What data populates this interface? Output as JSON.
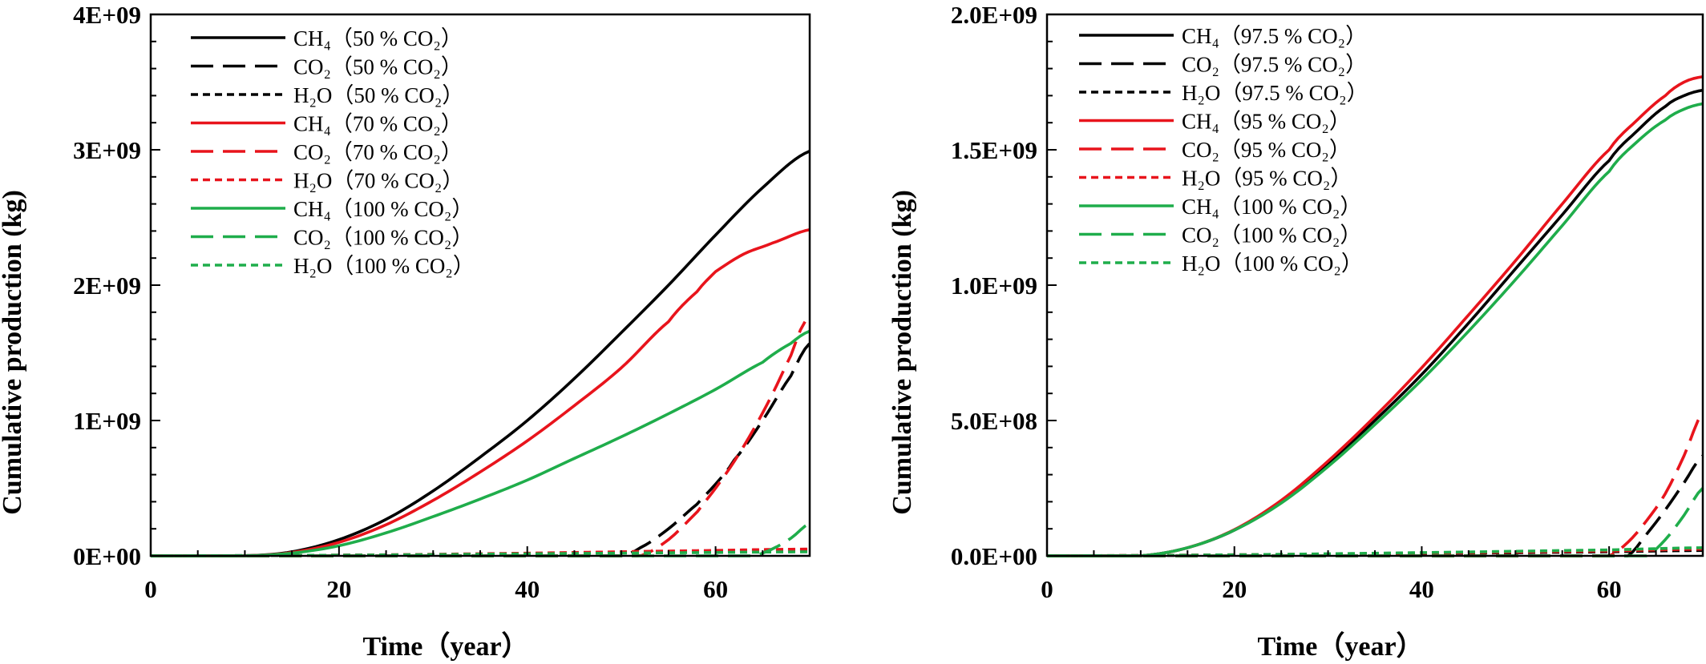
{
  "colors": {
    "black": "#000000",
    "red": "#e8141c",
    "green": "#1fad4b"
  },
  "chart_data": [
    {
      "type": "line",
      "xlabel": "Time（year）",
      "ylabel": "Cumulative production (kg)",
      "xlim": [
        0,
        70
      ],
      "ylim": [
        0,
        4000000000
      ],
      "x_ticks": [
        0,
        20,
        40,
        60
      ],
      "x_tick_labels": [
        "0",
        "20",
        "40",
        "60"
      ],
      "y_ticks": [
        0,
        1000000000,
        2000000000,
        3000000000,
        4000000000
      ],
      "y_tick_labels": [
        "0E+00",
        "1E+09",
        "2E+09",
        "3E+09",
        "4E+09"
      ],
      "grid": false,
      "legend_position": "top-left",
      "series": [
        {
          "name": "CH₄（50 % CO₂）",
          "color": "black",
          "dash": "solid",
          "x": [
            0,
            10,
            15,
            20,
            25,
            30,
            35,
            40,
            45,
            50,
            55,
            60,
            65,
            70
          ],
          "y": [
            0,
            0,
            30000000,
            120000000,
            270000000,
            480000000,
            730000000,
            1000000000,
            1310000000,
            1650000000,
            2000000000,
            2370000000,
            2720000000,
            2990000000
          ]
        },
        {
          "name": "CO₂（50 % CO₂）",
          "color": "black",
          "dash": "long",
          "x": [
            0,
            50,
            52,
            55,
            58,
            60,
            62,
            65,
            68,
            70
          ],
          "y": [
            0,
            0,
            60000000,
            200000000,
            380000000,
            530000000,
            710000000,
            1000000000,
            1330000000,
            1570000000
          ]
        },
        {
          "name": "H₂O（50 % CO₂）",
          "color": "black",
          "dash": "short",
          "x": [
            0,
            20,
            40,
            60,
            70
          ],
          "y": [
            0,
            5000000,
            15000000,
            30000000,
            40000000
          ]
        },
        {
          "name": "CH₄（70 % CO₂）",
          "color": "red",
          "dash": "solid",
          "x": [
            0,
            10,
            15,
            20,
            25,
            30,
            35,
            40,
            45,
            50,
            55,
            58,
            60,
            63,
            66,
            70
          ],
          "y": [
            0,
            0,
            25000000,
            100000000,
            230000000,
            410000000,
            620000000,
            850000000,
            1110000000,
            1390000000,
            1730000000,
            1950000000,
            2100000000,
            2230000000,
            2310000000,
            2410000000
          ]
        },
        {
          "name": "CO₂（70 % CO₂）",
          "color": "red",
          "dash": "long",
          "x": [
            0,
            52,
            55,
            58,
            60,
            62,
            64,
            66,
            68,
            69.5
          ],
          "y": [
            0,
            0,
            120000000,
            320000000,
            500000000,
            700000000,
            930000000,
            1190000000,
            1480000000,
            1730000000
          ]
        },
        {
          "name": "H₂O（70 % CO₂）",
          "color": "red",
          "dash": "short",
          "x": [
            0,
            20,
            40,
            60,
            70
          ],
          "y": [
            0,
            5000000,
            20000000,
            40000000,
            50000000
          ]
        },
        {
          "name": "CH₄（100 % CO₂）",
          "color": "green",
          "dash": "solid",
          "x": [
            0,
            10,
            15,
            20,
            25,
            30,
            35,
            40,
            45,
            50,
            55,
            60,
            65,
            68,
            70
          ],
          "y": [
            0,
            0,
            20000000,
            75000000,
            170000000,
            290000000,
            420000000,
            560000000,
            720000000,
            880000000,
            1050000000,
            1230000000,
            1430000000,
            1570000000,
            1660000000
          ]
        },
        {
          "name": "CO₂（100 % CO₂）",
          "color": "green",
          "dash": "long",
          "x": [
            0,
            64,
            66,
            68,
            70
          ],
          "y": [
            0,
            0,
            50000000,
            130000000,
            240000000
          ]
        },
        {
          "name": "H₂O（100 % CO₂）",
          "color": "green",
          "dash": "short",
          "x": [
            0,
            20,
            40,
            60,
            70
          ],
          "y": [
            0,
            5000000,
            15000000,
            25000000,
            30000000
          ]
        }
      ]
    },
    {
      "type": "line",
      "xlabel": "Time（year）",
      "ylabel": "Cumulative production (kg)",
      "xlim": [
        0,
        70
      ],
      "ylim": [
        0,
        2000000000
      ],
      "x_ticks": [
        0,
        20,
        40,
        60
      ],
      "x_tick_labels": [
        "0",
        "20",
        "40",
        "60"
      ],
      "y_ticks": [
        0,
        500000000,
        1000000000,
        1500000000,
        2000000000
      ],
      "y_tick_labels": [
        "0.0E+00",
        "5.0E+08",
        "1.0E+09",
        "1.5E+09",
        "2.0E+09"
      ],
      "grid": false,
      "legend_position": "top-left",
      "series": [
        {
          "name": "CH₄（97.5 % CO₂）",
          "color": "black",
          "dash": "solid",
          "x": [
            0,
            10,
            15,
            20,
            25,
            30,
            35,
            40,
            45,
            50,
            55,
            60,
            63,
            66,
            68,
            70
          ],
          "y": [
            0,
            0,
            30000000,
            95000000,
            200000000,
            340000000,
            500000000,
            670000000,
            860000000,
            1060000000,
            1260000000,
            1460000000,
            1570000000,
            1660000000,
            1700000000,
            1720000000
          ]
        },
        {
          "name": "CO₂（97.5 % CO₂）",
          "color": "black",
          "dash": "long",
          "x": [
            0,
            62,
            64,
            66,
            68,
            70
          ],
          "y": [
            0,
            0,
            80000000,
            170000000,
            270000000,
            370000000
          ]
        },
        {
          "name": "H₂O（97.5 % CO₂）",
          "color": "black",
          "dash": "short",
          "x": [
            0,
            20,
            40,
            60,
            70
          ],
          "y": [
            0,
            3000000,
            8000000,
            15000000,
            20000000
          ]
        },
        {
          "name": "CH₄（95 % CO₂）",
          "color": "red",
          "dash": "solid",
          "x": [
            0,
            10,
            15,
            20,
            25,
            30,
            35,
            40,
            45,
            50,
            55,
            60,
            63,
            66,
            68,
            70
          ],
          "y": [
            0,
            0,
            30000000,
            97000000,
            205000000,
            350000000,
            515000000,
            695000000,
            890000000,
            1090000000,
            1300000000,
            1500000000,
            1610000000,
            1700000000,
            1750000000,
            1770000000
          ]
        },
        {
          "name": "CO₂（95 % CO₂）",
          "color": "red",
          "dash": "long",
          "x": [
            0,
            60,
            62,
            64,
            66,
            68,
            70
          ],
          "y": [
            0,
            0,
            50000000,
            130000000,
            230000000,
            370000000,
            530000000
          ]
        },
        {
          "name": "H₂O（95 % CO₂）",
          "color": "red",
          "dash": "short",
          "x": [
            0,
            20,
            40,
            60,
            70
          ],
          "y": [
            0,
            4000000,
            10000000,
            18000000,
            25000000
          ]
        },
        {
          "name": "CH₄（100 % CO₂）",
          "color": "green",
          "dash": "solid",
          "x": [
            0,
            10,
            15,
            20,
            25,
            30,
            35,
            40,
            45,
            50,
            55,
            60,
            63,
            66,
            68,
            70
          ],
          "y": [
            0,
            0,
            30000000,
            95000000,
            195000000,
            330000000,
            485000000,
            650000000,
            830000000,
            1020000000,
            1220000000,
            1420000000,
            1530000000,
            1610000000,
            1650000000,
            1670000000
          ]
        },
        {
          "name": "CO₂（100 % CO₂）",
          "color": "green",
          "dash": "long",
          "x": [
            0,
            64,
            66,
            68,
            70
          ],
          "y": [
            0,
            0,
            60000000,
            150000000,
            250000000
          ]
        },
        {
          "name": "H₂O（100 % CO₂）",
          "color": "green",
          "dash": "short",
          "x": [
            0,
            20,
            40,
            60,
            70
          ],
          "y": [
            0,
            4000000,
            12000000,
            22000000,
            30000000
          ]
        }
      ]
    }
  ]
}
